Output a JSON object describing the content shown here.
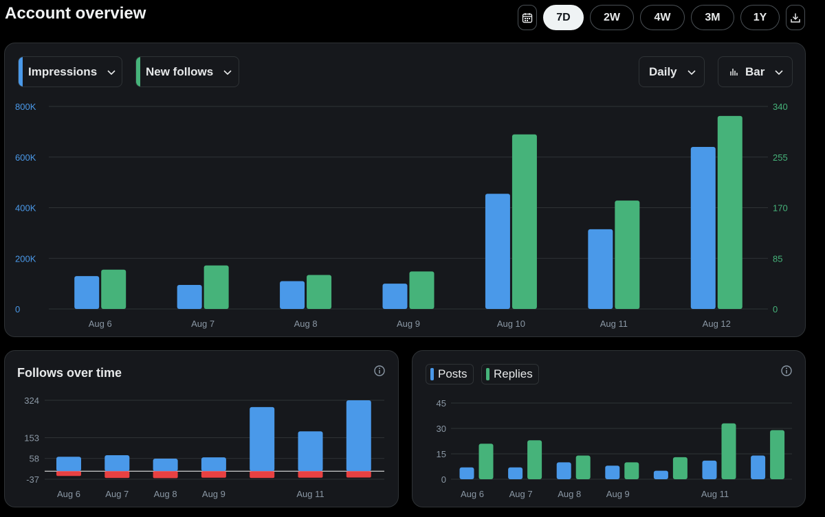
{
  "page": {
    "title": "Account overview"
  },
  "range": {
    "buttons": [
      {
        "label": "7D",
        "active": true
      },
      {
        "label": "2W",
        "active": false
      },
      {
        "label": "4W",
        "active": false
      },
      {
        "label": "3M",
        "active": false
      },
      {
        "label": "1Y",
        "active": false
      }
    ],
    "calendar_icon": "calendar-icon",
    "download_icon": "download-icon"
  },
  "main": {
    "metric1": {
      "label": "Impressions",
      "color": "#4a99e9"
    },
    "metric2": {
      "label": "New follows",
      "color": "#46b37a"
    },
    "interval": "Daily",
    "chart_type": "Bar"
  },
  "follows": {
    "title": "Follows over time"
  },
  "posts": {
    "legend": [
      {
        "label": "Posts",
        "color": "#4a99e9"
      },
      {
        "label": "Replies",
        "color": "#46b37a"
      }
    ]
  },
  "chart_data": [
    {
      "type": "bar",
      "categories": [
        "Aug 6",
        "Aug 7",
        "Aug 8",
        "Aug 9",
        "Aug 10",
        "Aug 11",
        "Aug 12"
      ],
      "series": [
        {
          "name": "Impressions",
          "axis": "left",
          "color": "#4a99e9",
          "values": [
            130000,
            95000,
            110000,
            100000,
            455000,
            315000,
            640000
          ]
        },
        {
          "name": "New follows",
          "axis": "right",
          "color": "#46b37a",
          "values": [
            66,
            73,
            57,
            63,
            293,
            182,
            324
          ]
        }
      ],
      "left_ylim": [
        0,
        800000
      ],
      "left_ticks": [
        "0",
        "200K",
        "400K",
        "600K",
        "800K"
      ],
      "right_ylim": [
        0,
        340
      ],
      "right_ticks": [
        "0",
        "85",
        "170",
        "255",
        "340"
      ],
      "grid": true
    },
    {
      "type": "bar",
      "stacked": true,
      "categories": [
        "Aug 6",
        "Aug 7",
        "Aug 8",
        "Aug 9",
        "Aug 10",
        "Aug 11",
        "Aug 12"
      ],
      "x_tick_labels": [
        "Aug 6",
        "Aug 7",
        "Aug 8",
        "Aug 9",
        "",
        "Aug 11",
        ""
      ],
      "series": [
        {
          "color": "#4a99e9",
          "values": [
            66,
            73,
            57,
            63,
            293,
            182,
            324
          ]
        },
        {
          "color": "#e84142",
          "values": [
            -22,
            -31,
            -32,
            -30,
            -31,
            -30,
            -29
          ]
        }
      ],
      "ylim": [
        -37,
        324
      ],
      "y_ticks": [
        324,
        153,
        58,
        -37
      ],
      "grid": true
    },
    {
      "type": "bar",
      "categories": [
        "Aug 6",
        "Aug 7",
        "Aug 8",
        "Aug 9",
        "Aug 10",
        "Aug 11",
        "Aug 12"
      ],
      "x_tick_labels": [
        "Aug 6",
        "Aug 7",
        "Aug 8",
        "Aug 9",
        "",
        "Aug 11",
        ""
      ],
      "series": [
        {
          "name": "Posts",
          "color": "#4a99e9",
          "values": [
            7,
            7,
            10,
            8,
            5,
            11,
            14
          ]
        },
        {
          "name": "Replies",
          "color": "#46b37a",
          "values": [
            21,
            23,
            14,
            10,
            13,
            33,
            29
          ]
        }
      ],
      "ylim": [
        0,
        45
      ],
      "y_ticks": [
        45,
        30,
        15,
        0
      ],
      "grid": true
    }
  ]
}
